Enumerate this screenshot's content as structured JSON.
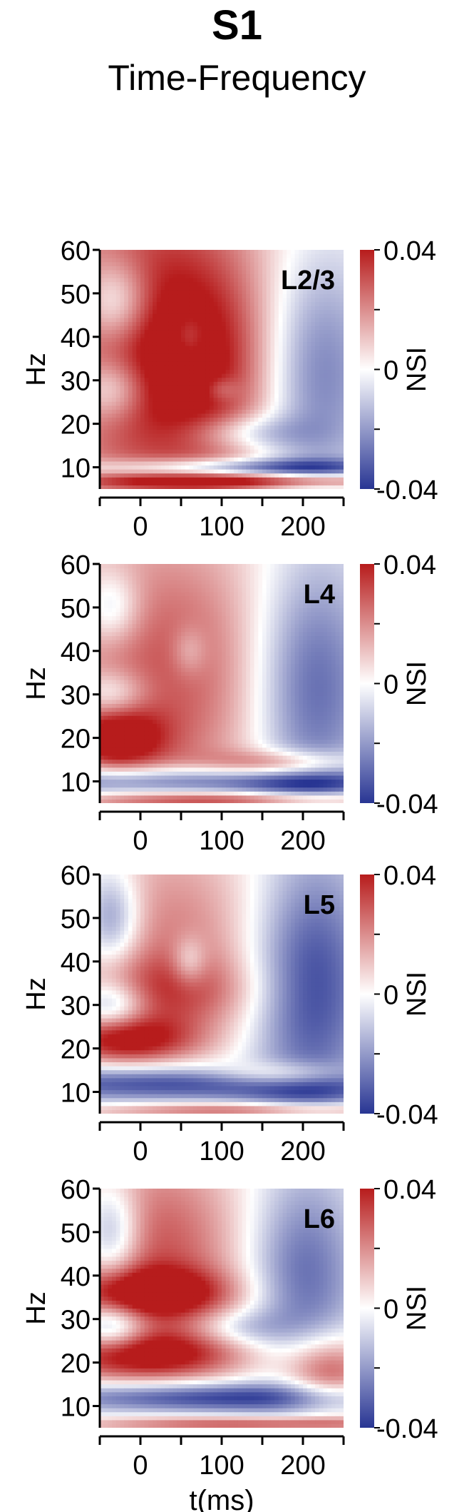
{
  "header": {
    "title": "S1",
    "subtitle": "Time-Frequency"
  },
  "colors": {
    "positive": "#b71c1c",
    "neutral": "#ffffff",
    "negative": "#283593"
  },
  "chart_data": [
    {
      "type": "heatmap",
      "panel_label": "L2/3",
      "xlabel": "",
      "ylabel": "Hz",
      "xlim": [
        -50,
        250
      ],
      "ylim": [
        5,
        60
      ],
      "x_ticks": [
        "0",
        "100",
        "200"
      ],
      "y_ticks": [
        "10",
        "20",
        "30",
        "40",
        "50",
        "60"
      ],
      "colorbar": {
        "label": "NSI",
        "range": [
          -0.04,
          0.04
        ],
        "ticks": [
          "0.04",
          "0",
          "-0.04"
        ]
      },
      "blobs": [
        {
          "x": 20,
          "y": 40,
          "sx": 110,
          "sy": 30,
          "a": 0.04
        },
        {
          "x": 90,
          "y": 32,
          "sx": 80,
          "sy": 16,
          "a": 0.018
        },
        {
          "x": -30,
          "y": 48,
          "sx": 30,
          "sy": 7,
          "a": -0.03
        },
        {
          "x": -35,
          "y": 28,
          "sx": 30,
          "sy": 5,
          "a": -0.026
        },
        {
          "x": 210,
          "y": 32,
          "sx": 55,
          "sy": 20,
          "a": -0.035
        },
        {
          "x": 130,
          "y": 18,
          "sx": 50,
          "sy": 3,
          "a": -0.02
        },
        {
          "x": 130,
          "y": 10,
          "sx": 130,
          "sy": 1.5,
          "a": -0.035
        },
        {
          "x": 150,
          "y": 7,
          "sx": 150,
          "sy": 1.2,
          "a": 0.035
        },
        {
          "x": 60,
          "y": 40,
          "sx": 15,
          "sy": 4,
          "a": -0.015
        },
        {
          "x": 100,
          "y": 28,
          "sx": 15,
          "sy": 2,
          "a": -0.012
        }
      ]
    },
    {
      "type": "heatmap",
      "panel_label": "L4",
      "xlabel": "",
      "ylabel": "Hz",
      "xlim": [
        -50,
        250
      ],
      "ylim": [
        5,
        60
      ],
      "x_ticks": [
        "0",
        "100",
        "200"
      ],
      "y_ticks": [
        "10",
        "20",
        "30",
        "40",
        "50",
        "60"
      ],
      "colorbar": {
        "label": "NSI",
        "range": [
          -0.04,
          0.04
        ],
        "ticks": [
          "0.04",
          "0",
          "-0.04"
        ]
      },
      "blobs": [
        {
          "x": 30,
          "y": 35,
          "sx": 110,
          "sy": 25,
          "a": 0.03
        },
        {
          "x": -30,
          "y": 20,
          "sx": 40,
          "sy": 5,
          "a": 0.035
        },
        {
          "x": -35,
          "y": 50,
          "sx": 25,
          "sy": 6,
          "a": -0.022
        },
        {
          "x": -35,
          "y": 30,
          "sx": 30,
          "sy": 4,
          "a": -0.022
        },
        {
          "x": 210,
          "y": 32,
          "sx": 55,
          "sy": 22,
          "a": -0.035
        },
        {
          "x": 50,
          "y": 10,
          "sx": 200,
          "sy": 2.5,
          "a": -0.04
        },
        {
          "x": 180,
          "y": 14,
          "sx": 60,
          "sy": 2.2,
          "a": 0.03
        },
        {
          "x": 150,
          "y": 6,
          "sx": 150,
          "sy": 1.2,
          "a": 0.03
        },
        {
          "x": 60,
          "y": 40,
          "sx": 15,
          "sy": 4,
          "a": -0.012
        }
      ]
    },
    {
      "type": "heatmap",
      "panel_label": "L5",
      "xlabel": "",
      "ylabel": "Hz",
      "xlim": [
        -50,
        250
      ],
      "ylim": [
        5,
        60
      ],
      "x_ticks": [
        "0",
        "100",
        "200"
      ],
      "y_ticks": [
        "10",
        "20",
        "30",
        "40",
        "50",
        "60"
      ],
      "colorbar": {
        "label": "NSI",
        "range": [
          -0.04,
          0.04
        ],
        "ticks": [
          "0.04",
          "0",
          "-0.04"
        ]
      },
      "blobs": [
        {
          "x": 40,
          "y": 45,
          "sx": 90,
          "sy": 18,
          "a": 0.022
        },
        {
          "x": 30,
          "y": 33,
          "sx": 80,
          "sy": 6,
          "a": 0.02
        },
        {
          "x": -20,
          "y": 22,
          "sx": 60,
          "sy": 4,
          "a": 0.038
        },
        {
          "x": -35,
          "y": 50,
          "sx": 25,
          "sy": 8,
          "a": -0.03
        },
        {
          "x": -35,
          "y": 30,
          "sx": 30,
          "sy": 4,
          "a": -0.03
        },
        {
          "x": 210,
          "y": 35,
          "sx": 55,
          "sy": 22,
          "a": -0.038
        },
        {
          "x": 60,
          "y": 12,
          "sx": 200,
          "sy": 3,
          "a": -0.04
        },
        {
          "x": 180,
          "y": 14,
          "sx": 60,
          "sy": 2.2,
          "a": 0.035
        },
        {
          "x": 150,
          "y": 6,
          "sx": 150,
          "sy": 1.2,
          "a": 0.03
        },
        {
          "x": 60,
          "y": 40,
          "sx": 15,
          "sy": 4,
          "a": -0.018
        }
      ]
    },
    {
      "type": "heatmap",
      "panel_label": "L6",
      "xlabel": "t(ms)",
      "ylabel": "Hz",
      "xlim": [
        -50,
        250
      ],
      "ylim": [
        5,
        60
      ],
      "x_ticks": [
        "0",
        "100",
        "200"
      ],
      "y_ticks": [
        "10",
        "20",
        "30",
        "40",
        "50",
        "60"
      ],
      "colorbar": {
        "label": "NSI",
        "range": [
          -0.04,
          0.04
        ],
        "ticks": [
          "0.04",
          "0",
          "-0.04"
        ]
      },
      "blobs": [
        {
          "x": 20,
          "y": 45,
          "sx": 80,
          "sy": 18,
          "a": 0.03
        },
        {
          "x": 10,
          "y": 36,
          "sx": 70,
          "sy": 4,
          "a": 0.038
        },
        {
          "x": 0,
          "y": 22,
          "sx": 90,
          "sy": 4,
          "a": 0.04
        },
        {
          "x": 230,
          "y": 18,
          "sx": 40,
          "sy": 6,
          "a": 0.035
        },
        {
          "x": -35,
          "y": 50,
          "sx": 25,
          "sy": 8,
          "a": -0.03
        },
        {
          "x": -35,
          "y": 28,
          "sx": 30,
          "sy": 4,
          "a": -0.032
        },
        {
          "x": 200,
          "y": 40,
          "sx": 50,
          "sy": 18,
          "a": -0.03
        },
        {
          "x": 80,
          "y": 12,
          "sx": 150,
          "sy": 2.5,
          "a": -0.04
        },
        {
          "x": 150,
          "y": 6,
          "sx": 150,
          "sy": 1.2,
          "a": 0.03
        },
        {
          "x": 120,
          "y": 28,
          "sx": 40,
          "sy": 3,
          "a": -0.015
        }
      ]
    }
  ]
}
